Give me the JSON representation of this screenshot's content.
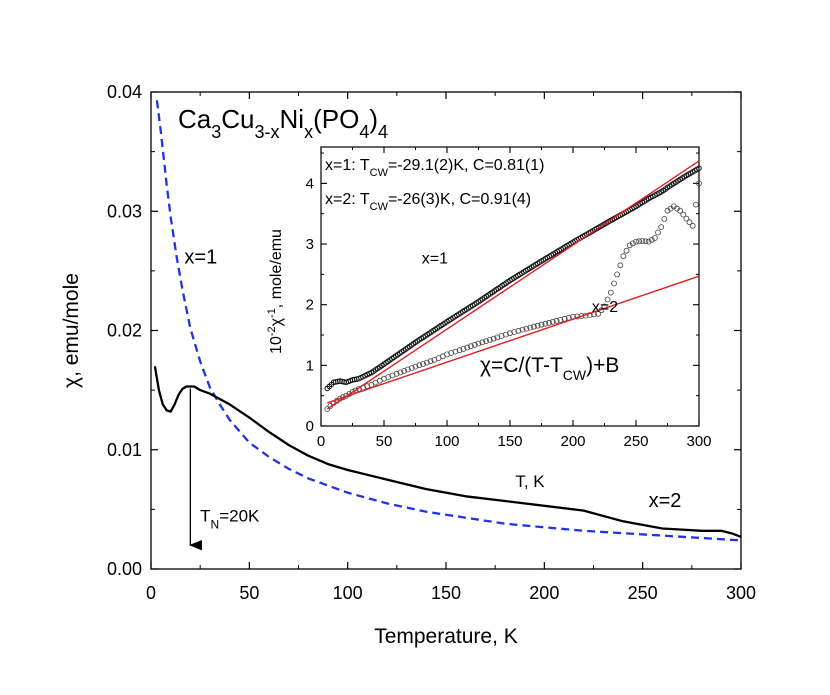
{
  "chart_data": [
    {
      "type": "line",
      "role": "main",
      "xlabel": "Temperature, K",
      "ylabel": "χ, emu/mole",
      "xlim": [
        0,
        300
      ],
      "ylim": [
        0,
        0.04
      ],
      "xticks": [
        0,
        50,
        100,
        150,
        200,
        250,
        300
      ],
      "yticks": [
        0.0,
        0.01,
        0.02,
        0.03,
        0.04
      ],
      "ytick_labels": [
        "0.00",
        "0.01",
        "0.02",
        "0.03",
        "0.04"
      ],
      "compound": {
        "base": "Ca",
        "s1": "3",
        "mid": "Cu",
        "s2": "3-x",
        "mid2": "Ni",
        "s3": "x",
        "mid3": "(PO",
        "s4": "4",
        "end": ")",
        "s5": "4"
      },
      "series": [
        {
          "name": "x=1",
          "style": "dashed",
          "color": "#1f35e0",
          "x": [
            3,
            5,
            8,
            10,
            13,
            16,
            20,
            25,
            30,
            35,
            40,
            50,
            60,
            70,
            80,
            100,
            120,
            140,
            160,
            180,
            200,
            220,
            240,
            260,
            280,
            300
          ],
          "y": [
            0.0393,
            0.0367,
            0.0322,
            0.0295,
            0.0262,
            0.0234,
            0.0202,
            0.0174,
            0.0152,
            0.0138,
            0.0125,
            0.0106,
            0.0094,
            0.0084,
            0.0076,
            0.0064,
            0.0055,
            0.0048,
            0.0043,
            0.0038,
            0.0035,
            0.0032,
            0.003,
            0.0028,
            0.0026,
            0.0024
          ]
        },
        {
          "name": "x=2",
          "style": "solid",
          "color": "#000000",
          "x": [
            2,
            4,
            6,
            8,
            10,
            12,
            14,
            16,
            18,
            20,
            22,
            25,
            30,
            40,
            50,
            60,
            70,
            80,
            90,
            100,
            120,
            140,
            160,
            180,
            200,
            220,
            240,
            250,
            260,
            270,
            280,
            290,
            295,
            300
          ],
          "y": [
            0.017,
            0.015,
            0.0138,
            0.0133,
            0.0132,
            0.0138,
            0.0146,
            0.0151,
            0.0153,
            0.0153,
            0.0153,
            0.015,
            0.0147,
            0.0138,
            0.0127,
            0.0115,
            0.0104,
            0.0095,
            0.0088,
            0.0083,
            0.0075,
            0.0067,
            0.0061,
            0.0057,
            0.0053,
            0.0049,
            0.004,
            0.0037,
            0.0034,
            0.0033,
            0.0032,
            0.0032,
            0.003,
            0.0027
          ]
        }
      ],
      "annotations": [
        {
          "text": "x=1",
          "x": 17,
          "y": 0.0256
        },
        {
          "text": "x=2",
          "x": 253,
          "y": 0.0052
        },
        {
          "text_main": "T",
          "text_sub": "N",
          "text_rest": "=20K",
          "x": 25,
          "y": 0.004
        },
        {
          "arrow_from": [
            20,
            0.0153
          ],
          "arrow_to": [
            20,
            0.002
          ]
        }
      ]
    },
    {
      "type": "scatter",
      "role": "inset",
      "xlabel": "T, K",
      "ylabel_pre": "10",
      "ylabel_sup1": "-2",
      "ylabel_chi": "χ",
      "ylabel_sup2": "-1",
      "ylabel_post": ", mole/emu",
      "xlim": [
        0,
        300
      ],
      "ylim": [
        0,
        4.6
      ],
      "xticks": [
        0,
        50,
        100,
        150,
        200,
        250,
        300
      ],
      "yticks": [
        0,
        1,
        2,
        3,
        4
      ],
      "fit_text": {
        "pre": "χ=C/(T-T",
        "sub": "CW",
        "post": ")+B"
      },
      "legend_lines": [
        {
          "pre": "x=1: T",
          "sub": "CW",
          "post": "=-29.1(2)K, C=0.81(1)"
        },
        {
          "pre": "x=2: T",
          "sub": "CW",
          "post": "=-26(3)K, C=0.91(4)"
        }
      ],
      "series": [
        {
          "name": "x=1",
          "marker": "black-dense",
          "x": [
            5,
            10,
            15,
            20,
            25,
            30,
            40,
            50,
            75,
            100,
            125,
            150,
            175,
            200,
            225,
            250,
            260,
            270,
            280,
            290,
            300
          ],
          "y": [
            0.62,
            0.72,
            0.74,
            0.72,
            0.76,
            0.78,
            0.88,
            1.02,
            1.38,
            1.72,
            2.05,
            2.4,
            2.72,
            3.03,
            3.33,
            3.62,
            3.75,
            3.86,
            4.0,
            4.13,
            4.25
          ],
          "fit": {
            "x": [
              5,
              300
            ],
            "y": [
              0.28,
              4.37
            ]
          }
        },
        {
          "name": "x=2",
          "marker": "open-circle",
          "x": [
            5,
            10,
            15,
            20,
            25,
            30,
            40,
            50,
            60,
            75,
            90,
            100,
            110,
            125,
            140,
            150,
            160,
            175,
            190,
            200,
            210,
            220,
            225,
            230,
            235,
            240,
            245,
            250,
            255,
            260,
            265,
            270,
            275,
            280,
            285,
            290,
            295,
            300
          ],
          "y": [
            0.28,
            0.38,
            0.45,
            0.5,
            0.56,
            0.61,
            0.68,
            0.78,
            0.86,
            0.98,
            1.09,
            1.18,
            1.25,
            1.36,
            1.46,
            1.53,
            1.59,
            1.67,
            1.75,
            1.8,
            1.82,
            1.85,
            1.97,
            2.2,
            2.5,
            2.8,
            2.98,
            3.04,
            3.05,
            3.04,
            3.1,
            3.28,
            3.55,
            3.62,
            3.55,
            3.42,
            3.3,
            4.0
          ],
          "fit": {
            "x": [
              5,
              300
            ],
            "y": [
              0.38,
              2.47
            ]
          }
        }
      ],
      "annotations": [
        {
          "text": "x=1",
          "x": 80,
          "y": 2.68
        },
        {
          "text": "x=2",
          "x": 215,
          "y": 1.88
        }
      ],
      "fit_color": "#e02020"
    }
  ]
}
